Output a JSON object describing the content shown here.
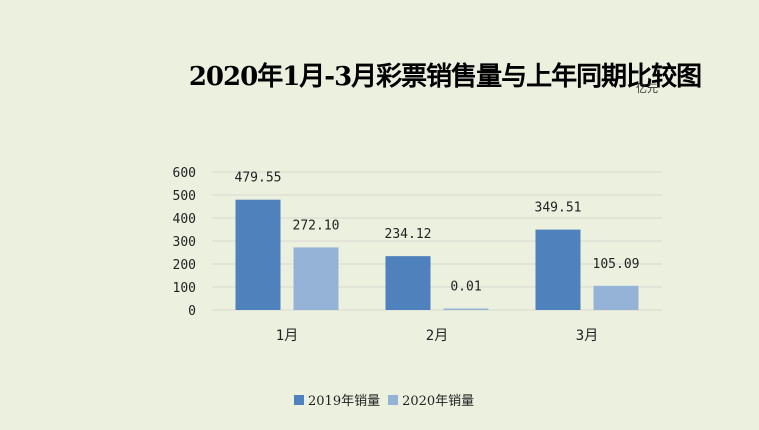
{
  "chart_data": {
    "type": "bar",
    "title": "2020年1月-3月彩票销售量与上年同期比较图",
    "unit": "亿元",
    "categories": [
      "1月",
      "2月",
      "3月"
    ],
    "series": [
      {
        "name": "2019年销量",
        "values": [
          479.55,
          234.12,
          349.51
        ],
        "labels": [
          "479.55",
          "234.12",
          "349.51"
        ],
        "color": "#4f81bd"
      },
      {
        "name": "2020年销量",
        "values": [
          272.1,
          0.01,
          105.09
        ],
        "labels": [
          "272.10",
          "0.01",
          "105.09"
        ],
        "color": "#95b3d7"
      }
    ],
    "ylim": [
      0,
      600
    ],
    "yticks": [
      "0",
      "100",
      "200",
      "300",
      "400",
      "500",
      "600"
    ],
    "grid": true,
    "legend_position": "bottom"
  }
}
